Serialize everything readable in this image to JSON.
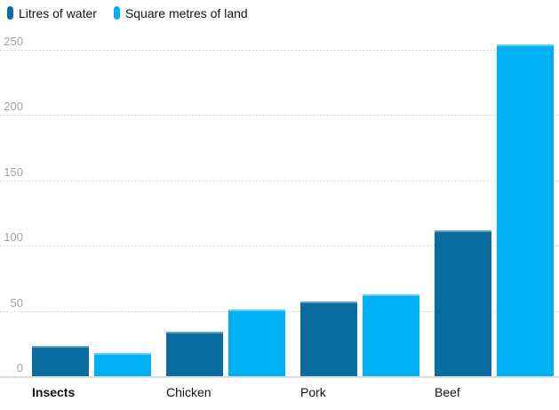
{
  "chart_data": {
    "type": "bar",
    "title": "",
    "xlabel": "",
    "ylabel": "",
    "categories": [
      "Insects",
      "Chicken",
      "Pork",
      "Beef"
    ],
    "series": [
      {
        "name": "Litres of water",
        "color": "#0a6c9e",
        "values": [
          23,
          34,
          57,
          112
        ]
      },
      {
        "name": "Square metres of land",
        "color": "#00b2f3",
        "values": [
          18,
          51,
          63,
          254
        ]
      }
    ],
    "ylim": [
      0,
      250
    ],
    "yticks": [
      0,
      50,
      100,
      150,
      200,
      250
    ],
    "grid": "horizontal-dotted",
    "legend_position": "top-left",
    "highlighted_category": "Insects",
    "colors": {
      "water_series": "#0a6c9e",
      "land_series": "#00b2f3",
      "gridline": "#c9c9c9",
      "zero_axis": "#dcdcdc",
      "tick_text": "#a3a3a3",
      "label_text": "#121212"
    }
  }
}
